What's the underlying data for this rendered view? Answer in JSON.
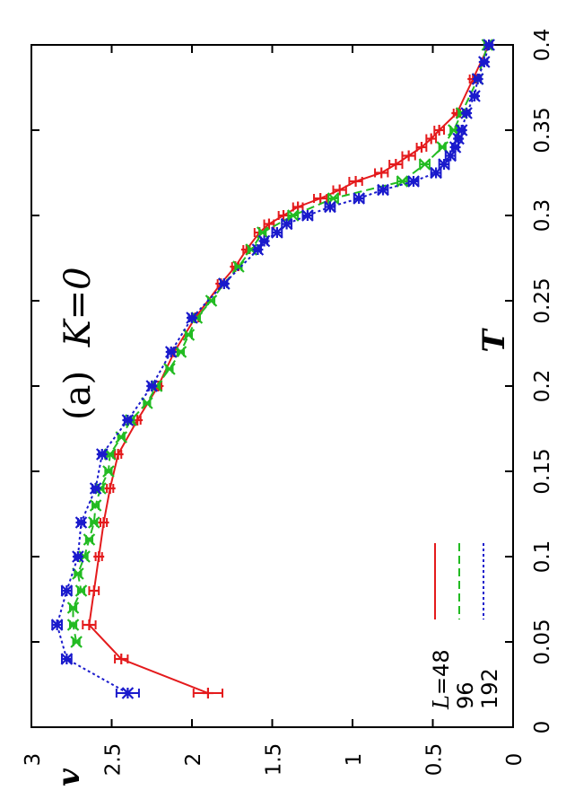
{
  "chart_data": {
    "type": "line",
    "title": "(a)",
    "title_italic": "K=0",
    "xlabel": "T",
    "ylabel": "v",
    "xlim": [
      0,
      0.4
    ],
    "ylim": [
      0,
      3
    ],
    "x_ticks": [
      "0",
      "0.05",
      "0.1",
      "0.15",
      "0.2",
      "0.25",
      "0.3",
      "0.35",
      "0.4"
    ],
    "y_ticks": [
      "0",
      "0.5",
      "1",
      "1.5",
      "2",
      "2.5",
      "3"
    ],
    "legend_title": "L",
    "legend_placement": "bottom-left",
    "series": [
      {
        "name": "=48",
        "color": "#e41a1c",
        "dash": "solid",
        "marker": "plus",
        "x": [
          0.02,
          0.04,
          0.06,
          0.08,
          0.1,
          0.12,
          0.14,
          0.16,
          0.18,
          0.2,
          0.22,
          0.24,
          0.26,
          0.27,
          0.28,
          0.29,
          0.295,
          0.3,
          0.305,
          0.31,
          0.315,
          0.32,
          0.325,
          0.33,
          0.335,
          0.34,
          0.345,
          0.35,
          0.36,
          0.38,
          0.4
        ],
        "y": [
          1.9,
          2.44,
          2.64,
          2.61,
          2.58,
          2.55,
          2.51,
          2.46,
          2.34,
          2.21,
          2.11,
          1.98,
          1.82,
          1.73,
          1.66,
          1.58,
          1.52,
          1.43,
          1.34,
          1.2,
          1.08,
          0.98,
          0.82,
          0.73,
          0.65,
          0.57,
          0.51,
          0.46,
          0.35,
          0.25,
          0.15
        ],
        "err": [
          0.09,
          0.04,
          0.04,
          0.03,
          0.02,
          0.02,
          0.02,
          0.02,
          0.02,
          0.02,
          0.02,
          0.02,
          0.02,
          0.02,
          0.02,
          0.03,
          0.03,
          0.03,
          0.03,
          0.04,
          0.04,
          0.04,
          0.04,
          0.04,
          0.04,
          0.03,
          0.03,
          0.03,
          0.02,
          0.02,
          0.02
        ]
      },
      {
        "name": "96",
        "color": "#22bb22",
        "dash": "dashed",
        "marker": "x",
        "x": [
          0.05,
          0.06,
          0.07,
          0.08,
          0.09,
          0.1,
          0.11,
          0.12,
          0.13,
          0.14,
          0.15,
          0.16,
          0.17,
          0.18,
          0.19,
          0.2,
          0.21,
          0.22,
          0.23,
          0.24,
          0.25,
          0.26,
          0.27,
          0.28,
          0.29,
          0.3,
          0.31,
          0.32,
          0.33,
          0.34,
          0.35,
          0.36,
          0.38,
          0.4
        ],
        "y": [
          2.72,
          2.74,
          2.74,
          2.69,
          2.71,
          2.67,
          2.64,
          2.61,
          2.6,
          2.57,
          2.52,
          2.51,
          2.44,
          2.38,
          2.28,
          2.22,
          2.14,
          2.07,
          2.02,
          1.97,
          1.88,
          1.8,
          1.71,
          1.63,
          1.56,
          1.37,
          1.12,
          0.69,
          0.55,
          0.44,
          0.37,
          0.32,
          0.22,
          0.16
        ],
        "err": [
          0.02,
          0.02,
          0.02,
          0.02,
          0.02,
          0.02,
          0.02,
          0.02,
          0.02,
          0.02,
          0.02,
          0.02,
          0.02,
          0.02,
          0.02,
          0.02,
          0.02,
          0.02,
          0.02,
          0.02,
          0.02,
          0.02,
          0.02,
          0.02,
          0.02,
          0.03,
          0.03,
          0.03,
          0.03,
          0.02,
          0.02,
          0.02,
          0.02,
          0.02
        ]
      },
      {
        "name": "192",
        "color": "#1a1acc",
        "dash": "dotted",
        "marker": "star",
        "x": [
          0.02,
          0.04,
          0.06,
          0.08,
          0.1,
          0.12,
          0.14,
          0.16,
          0.18,
          0.2,
          0.22,
          0.24,
          0.26,
          0.28,
          0.285,
          0.29,
          0.295,
          0.3,
          0.305,
          0.31,
          0.315,
          0.32,
          0.325,
          0.33,
          0.335,
          0.34,
          0.345,
          0.35,
          0.36,
          0.37,
          0.38,
          0.39,
          0.4
        ],
        "y": [
          2.4,
          2.78,
          2.84,
          2.78,
          2.71,
          2.69,
          2.6,
          2.56,
          2.4,
          2.25,
          2.13,
          2.0,
          1.8,
          1.59,
          1.55,
          1.47,
          1.41,
          1.28,
          1.14,
          0.96,
          0.81,
          0.62,
          0.48,
          0.43,
          0.39,
          0.36,
          0.34,
          0.32,
          0.29,
          0.24,
          0.22,
          0.18,
          0.15
        ],
        "err": [
          0.07,
          0.03,
          0.03,
          0.03,
          0.02,
          0.02,
          0.02,
          0.02,
          0.02,
          0.02,
          0.02,
          0.02,
          0.02,
          0.02,
          0.02,
          0.03,
          0.03,
          0.03,
          0.03,
          0.03,
          0.03,
          0.03,
          0.03,
          0.03,
          0.03,
          0.02,
          0.02,
          0.02,
          0.02,
          0.02,
          0.02,
          0.02,
          0.02
        ]
      }
    ]
  }
}
